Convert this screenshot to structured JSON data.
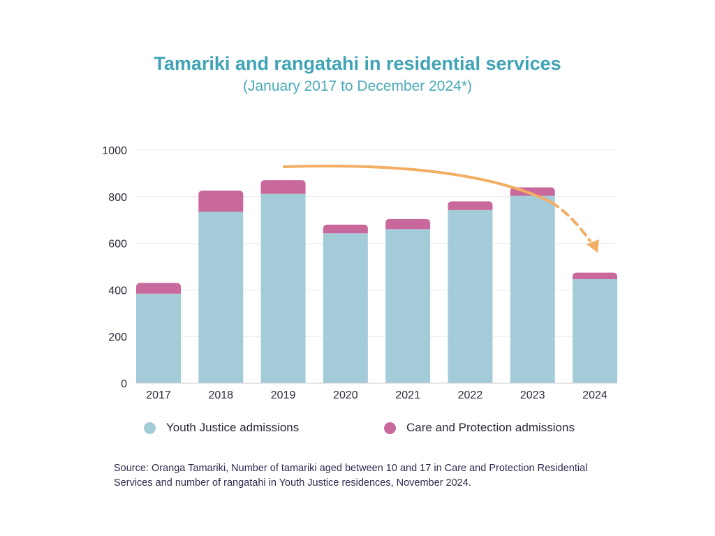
{
  "colors": {
    "title": "#3fa3b5",
    "youth_justice": "#a4cbd8",
    "care_protection": "#c9689a",
    "arrow": "#f2ae62",
    "grid": "#e8e8e8"
  },
  "source_text": "Source: Oranga Tamariki, Number of tamariki aged between 10 and 17 in Care and Protection Residential Services and number of rangatahi in Youth Justice residences, November 2024.",
  "chart_data": {
    "type": "bar",
    "stacked": true,
    "title": "Tamariki and rangatahi in residential services",
    "subtitle": "(January 2017 to December 2024*)",
    "categories": [
      "2017",
      "2018",
      "2019",
      "2020",
      "2021",
      "2022",
      "2023",
      "2024"
    ],
    "series": [
      {
        "name": "Youth Justice admissions",
        "color": "#a4cbd8",
        "values": [
          384,
          735,
          812,
          643,
          661,
          743,
          804,
          446
        ]
      },
      {
        "name": "Care and Protection admissions",
        "color": "#c9689a",
        "values": [
          46,
          91,
          59,
          37,
          43,
          37,
          36,
          28
        ]
      }
    ],
    "ylim": [
      0,
      1000
    ],
    "yticks": [
      0,
      200,
      400,
      600,
      800,
      1000
    ],
    "grid": true,
    "legend": "bottom",
    "annotation": "downward trend arrow from 2019 to 2024"
  }
}
